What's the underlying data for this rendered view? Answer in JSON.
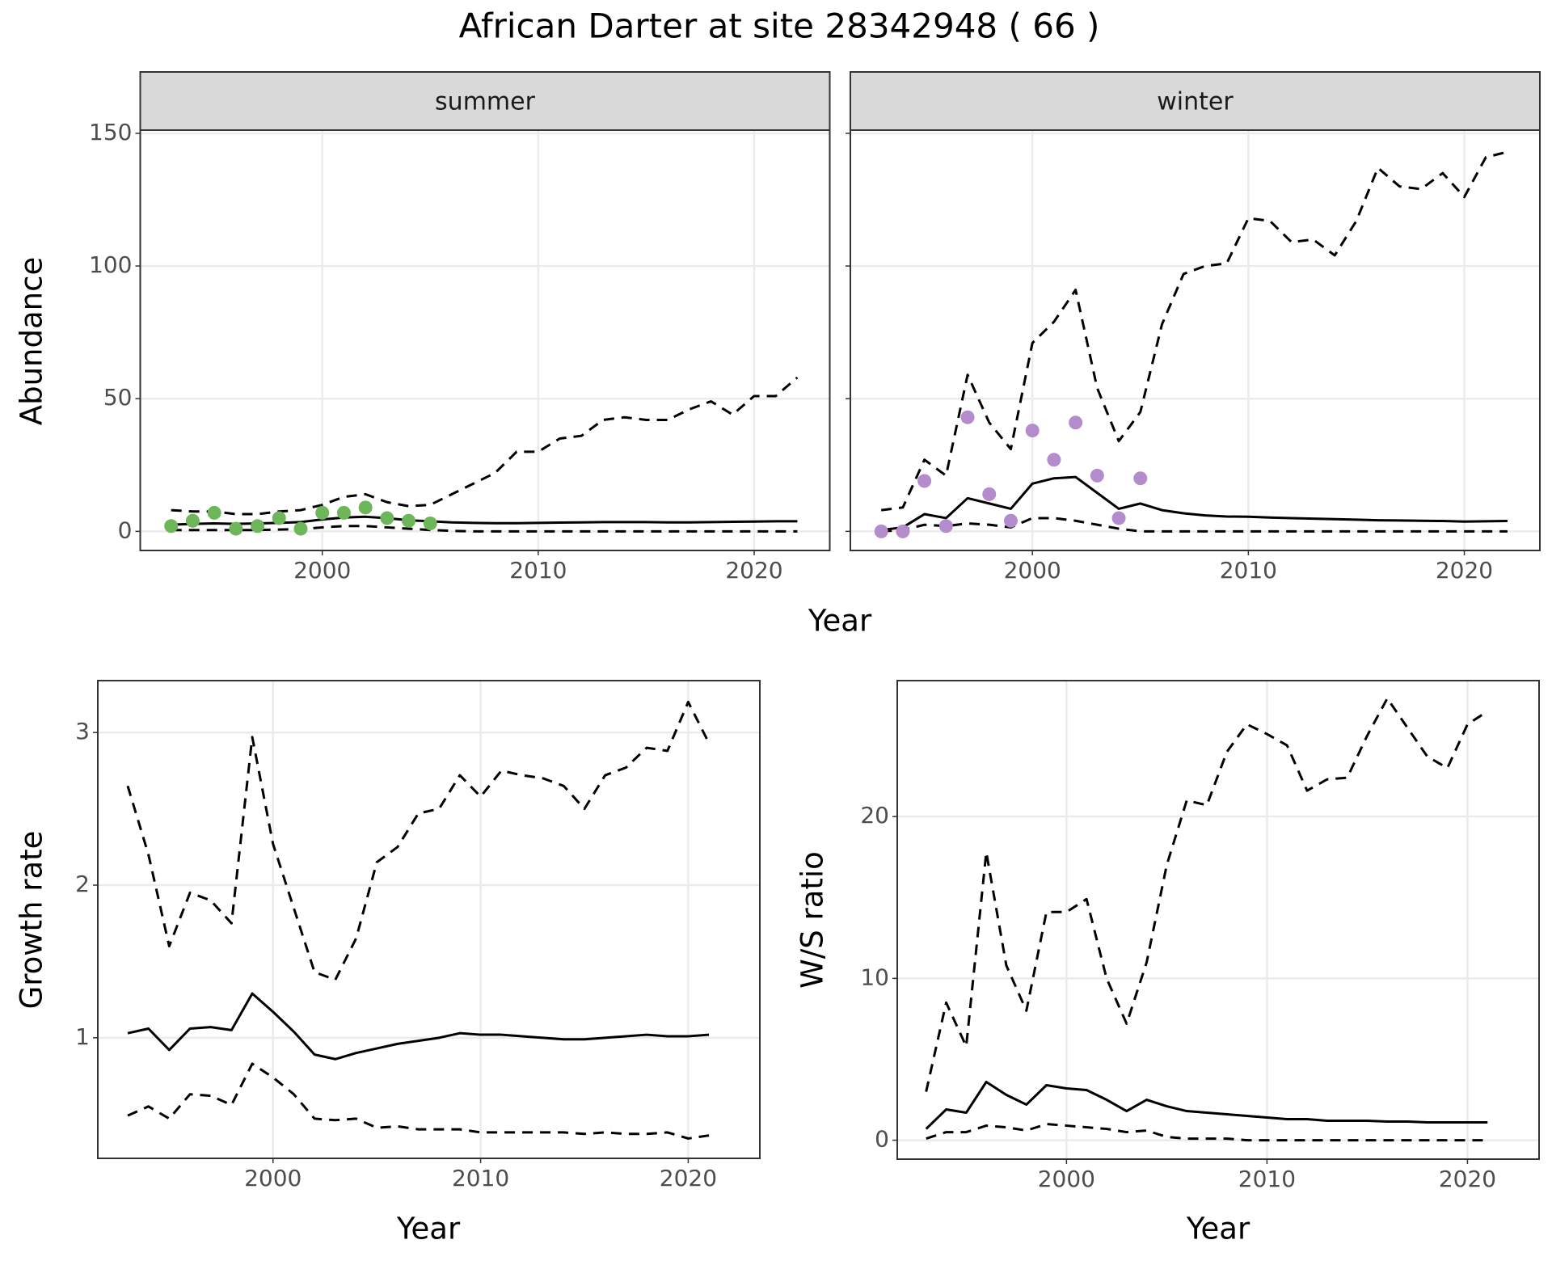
{
  "title": "African Darter at site 28342948 ( 66 )",
  "chart_data": [
    {
      "type": "line",
      "facet": "summer",
      "x_label": "Year",
      "y_label": "Abundance",
      "xlim": [
        1991.57,
        2023.5
      ],
      "xticks": [
        2000,
        2010,
        2020
      ],
      "ylim": [
        -7.2,
        151.2
      ],
      "yticks": [
        0,
        50,
        100,
        150
      ],
      "grid": true,
      "series": [
        {
          "style": "dashed",
          "color": "#000000",
          "x": [
            1993,
            1994,
            1995,
            1996,
            1997,
            1998,
            1999,
            2000,
            2001,
            2002,
            2003,
            2004,
            2005,
            2006,
            2007,
            2008,
            2009,
            2010,
            2011,
            2012,
            2013,
            2014,
            2015,
            2016,
            2017,
            2018,
            2019,
            2020,
            2021,
            2022
          ],
          "values": [
            8,
            7.5,
            7.5,
            6.5,
            6.5,
            7.5,
            8,
            10,
            13,
            14,
            11,
            9.5,
            10,
            14,
            18,
            22,
            30,
            30,
            35,
            36,
            42,
            43,
            42,
            42,
            46,
            49,
            44,
            51,
            51,
            58
          ]
        },
        {
          "style": "solid",
          "color": "#000000",
          "x": [
            1993,
            1994,
            1995,
            1996,
            1997,
            1998,
            1999,
            2000,
            2001,
            2002,
            2003,
            2004,
            2005,
            2006,
            2007,
            2008,
            2009,
            2010,
            2011,
            2012,
            2013,
            2014,
            2015,
            2016,
            2017,
            2018,
            2019,
            2020,
            2021,
            2022
          ],
          "values": [
            2.5,
            2.8,
            3,
            2.8,
            3,
            3.2,
            3.5,
            4.5,
            5.2,
            5.5,
            5,
            4.2,
            3.8,
            3.4,
            3.2,
            3.1,
            3.1,
            3.2,
            3.3,
            3.4,
            3.5,
            3.5,
            3.5,
            3.4,
            3.4,
            3.5,
            3.6,
            3.7,
            3.8,
            3.8
          ]
        },
        {
          "style": "dashed",
          "color": "#000000",
          "x": [
            1993,
            1994,
            1995,
            1996,
            1997,
            1998,
            1999,
            2000,
            2001,
            2002,
            2003,
            2004,
            2005,
            2006,
            2007,
            2008,
            2009,
            2010,
            2011,
            2012,
            2013,
            2014,
            2015,
            2016,
            2017,
            2018,
            2019,
            2020,
            2021,
            2022
          ],
          "values": [
            0.5,
            0.5,
            0.5,
            0.5,
            0.5,
            0.7,
            0.8,
            1.5,
            2,
            2,
            1.5,
            1,
            0.5,
            0.2,
            0,
            0,
            0,
            0,
            0,
            0,
            0,
            0,
            0,
            0,
            0,
            0,
            0,
            0,
            0,
            0
          ]
        },
        {
          "style": "points",
          "color": "#6db65a",
          "x": [
            1993,
            1994,
            1995,
            1996,
            1997,
            1998,
            1999,
            2000,
            2001,
            2002,
            2003,
            2004,
            2005
          ],
          "values": [
            2,
            4,
            7,
            1,
            2,
            5,
            1,
            7,
            7,
            9,
            5,
            4,
            3
          ]
        }
      ]
    },
    {
      "type": "line",
      "facet": "winter",
      "xlim": [
        1991.57,
        2023.5
      ],
      "xticks": [
        2000,
        2010,
        2020
      ],
      "ylim": [
        -7.2,
        151.2
      ],
      "yticks": [
        0,
        50,
        100,
        150
      ],
      "grid": true,
      "series": [
        {
          "style": "dashed",
          "color": "#000000",
          "x": [
            1993,
            1994,
            1995,
            1996,
            1997,
            1998,
            1999,
            2000,
            2001,
            2002,
            2003,
            2004,
            2005,
            2006,
            2007,
            2008,
            2009,
            2010,
            2011,
            2012,
            2013,
            2014,
            2015,
            2016,
            2017,
            2018,
            2019,
            2020,
            2021,
            2022
          ],
          "values": [
            8,
            9,
            27,
            21,
            59,
            41,
            31,
            71,
            79,
            91,
            54,
            34,
            45,
            78,
            97,
            100,
            101,
            118,
            117,
            109,
            110,
            104,
            117,
            137,
            130,
            129,
            135,
            126,
            141,
            143
          ]
        },
        {
          "style": "solid",
          "color": "#000000",
          "x": [
            1993,
            1994,
            1995,
            1996,
            1997,
            1998,
            1999,
            2000,
            2001,
            2002,
            2003,
            2004,
            2005,
            2006,
            2007,
            2008,
            2009,
            2010,
            2011,
            2012,
            2013,
            2014,
            2015,
            2016,
            2017,
            2018,
            2019,
            2020,
            2021,
            2022
          ],
          "values": [
            0.5,
            1.5,
            6.5,
            5,
            12.5,
            10.5,
            8.5,
            18,
            20,
            20.5,
            14.5,
            8.5,
            10.5,
            8,
            6.8,
            6,
            5.6,
            5.5,
            5.2,
            5,
            4.8,
            4.6,
            4.4,
            4.2,
            4.1,
            4,
            3.9,
            3.7,
            3.8,
            3.9
          ]
        },
        {
          "style": "dashed",
          "color": "#000000",
          "x": [
            1993,
            1994,
            1995,
            1996,
            1997,
            1998,
            1999,
            2000,
            2001,
            2002,
            2003,
            2004,
            2005,
            2006,
            2007,
            2008,
            2009,
            2010,
            2011,
            2012,
            2013,
            2014,
            2015,
            2016,
            2017,
            2018,
            2019,
            2020,
            2021,
            2022
          ],
          "values": [
            0,
            0.5,
            2.5,
            2,
            3,
            2.5,
            1.5,
            5,
            5,
            4,
            2.5,
            1,
            0,
            0,
            0,
            0,
            0,
            0,
            0,
            0,
            0,
            0,
            0,
            0,
            0,
            0,
            0,
            0,
            0,
            0
          ]
        },
        {
          "style": "points",
          "color": "#b48bcb",
          "x": [
            1993,
            1994,
            1995,
            1996,
            1997,
            1998,
            1999,
            2000,
            2001,
            2002,
            2003,
            2004,
            2005
          ],
          "values": [
            0,
            0,
            19,
            2,
            43,
            14,
            4,
            38,
            27,
            41,
            21,
            5,
            20
          ]
        }
      ]
    },
    {
      "type": "line",
      "x_label": "Year",
      "y_label": "Growth rate",
      "xlim": [
        1991.56,
        2023.45
      ],
      "xticks": [
        2000,
        2010,
        2020
      ],
      "ylim": [
        0.21,
        3.34
      ],
      "yticks": [
        1,
        2,
        3
      ],
      "grid": true,
      "series": [
        {
          "style": "dashed",
          "color": "#000000",
          "x": [
            1993,
            1994,
            1995,
            1996,
            1997,
            1998,
            1999,
            2000,
            2001,
            2002,
            2003,
            2004,
            2005,
            2006,
            2007,
            2008,
            2009,
            2010,
            2011,
            2012,
            2013,
            2014,
            2015,
            2016,
            2017,
            2018,
            2019,
            2020,
            2021
          ],
          "values": [
            2.65,
            2.2,
            1.6,
            1.95,
            1.9,
            1.75,
            2.97,
            2.27,
            1.85,
            1.43,
            1.38,
            1.65,
            2.15,
            2.25,
            2.47,
            2.5,
            2.72,
            2.58,
            2.75,
            2.72,
            2.7,
            2.65,
            2.5,
            2.72,
            2.77,
            2.9,
            2.88,
            3.2,
            2.93
          ]
        },
        {
          "style": "solid",
          "color": "#000000",
          "x": [
            1993,
            1994,
            1995,
            1996,
            1997,
            1998,
            1999,
            2000,
            2001,
            2002,
            2003,
            2004,
            2005,
            2006,
            2007,
            2008,
            2009,
            2010,
            2011,
            2012,
            2013,
            2014,
            2015,
            2016,
            2017,
            2018,
            2019,
            2020,
            2021
          ],
          "values": [
            1.03,
            1.06,
            0.92,
            1.06,
            1.07,
            1.05,
            1.29,
            1.17,
            1.04,
            0.89,
            0.86,
            0.9,
            0.93,
            0.96,
            0.98,
            1.0,
            1.03,
            1.02,
            1.02,
            1.01,
            1.0,
            0.99,
            0.99,
            1.0,
            1.01,
            1.02,
            1.01,
            1.01,
            1.02
          ]
        },
        {
          "style": "dashed",
          "color": "#000000",
          "x": [
            1993,
            1994,
            1995,
            1996,
            1997,
            1998,
            1999,
            2000,
            2001,
            2002,
            2003,
            2004,
            2005,
            2006,
            2007,
            2008,
            2009,
            2010,
            2011,
            2012,
            2013,
            2014,
            2015,
            2016,
            2017,
            2018,
            2019,
            2020,
            2021
          ],
          "values": [
            0.49,
            0.55,
            0.47,
            0.63,
            0.62,
            0.56,
            0.83,
            0.74,
            0.63,
            0.47,
            0.46,
            0.47,
            0.41,
            0.42,
            0.4,
            0.4,
            0.4,
            0.38,
            0.38,
            0.38,
            0.38,
            0.38,
            0.37,
            0.38,
            0.37,
            0.37,
            0.38,
            0.34,
            0.36
          ]
        }
      ]
    },
    {
      "type": "line",
      "x_label": "Year",
      "y_label": "W/S ratio",
      "xlim": [
        1991.56,
        2023.57
      ],
      "xticks": [
        2000,
        2010,
        2020
      ],
      "ylim": [
        -1.17,
        28.4
      ],
      "yticks": [
        0,
        10,
        20
      ],
      "grid": true,
      "series": [
        {
          "style": "dashed",
          "color": "#000000",
          "x": [
            1993,
            1994,
            1995,
            1996,
            1997,
            1998,
            1999,
            2000,
            2001,
            2002,
            2003,
            2004,
            2005,
            2006,
            2007,
            2008,
            2009,
            2010,
            2011,
            2012,
            2013,
            2014,
            2015,
            2016,
            2017,
            2018,
            2019,
            2020,
            2021
          ],
          "values": [
            3,
            8.5,
            5.8,
            17.8,
            10.8,
            8,
            14.1,
            14.1,
            14.9,
            10,
            7.2,
            11,
            17,
            21,
            20.7,
            24,
            25.7,
            25.1,
            24.4,
            21.6,
            22.3,
            22.4,
            25,
            27.3,
            25.5,
            23.7,
            23,
            25.7,
            26.5
          ]
        },
        {
          "style": "solid",
          "color": "#000000",
          "x": [
            1993,
            1994,
            1995,
            1996,
            1997,
            1998,
            1999,
            2000,
            2001,
            2002,
            2003,
            2004,
            2005,
            2006,
            2007,
            2008,
            2009,
            2010,
            2011,
            2012,
            2013,
            2014,
            2015,
            2016,
            2017,
            2018,
            2019,
            2020,
            2021
          ],
          "values": [
            0.7,
            1.9,
            1.7,
            3.6,
            2.8,
            2.2,
            3.4,
            3.2,
            3.1,
            2.5,
            1.8,
            2.5,
            2.1,
            1.8,
            1.7,
            1.6,
            1.5,
            1.4,
            1.3,
            1.3,
            1.2,
            1.2,
            1.2,
            1.15,
            1.15,
            1.1,
            1.1,
            1.1,
            1.1
          ]
        },
        {
          "style": "dashed",
          "color": "#000000",
          "x": [
            1993,
            1994,
            1995,
            1996,
            1997,
            1998,
            1999,
            2000,
            2001,
            2002,
            2003,
            2004,
            2005,
            2006,
            2007,
            2008,
            2009,
            2010,
            2011,
            2012,
            2013,
            2014,
            2015,
            2016,
            2017,
            2018,
            2019,
            2020,
            2021
          ],
          "values": [
            0.1,
            0.5,
            0.5,
            0.9,
            0.8,
            0.6,
            1,
            0.9,
            0.8,
            0.7,
            0.5,
            0.6,
            0.2,
            0.1,
            0.1,
            0.1,
            0,
            0,
            0,
            0,
            0,
            0,
            0,
            0,
            0,
            0,
            0,
            0,
            0
          ]
        }
      ]
    }
  ]
}
